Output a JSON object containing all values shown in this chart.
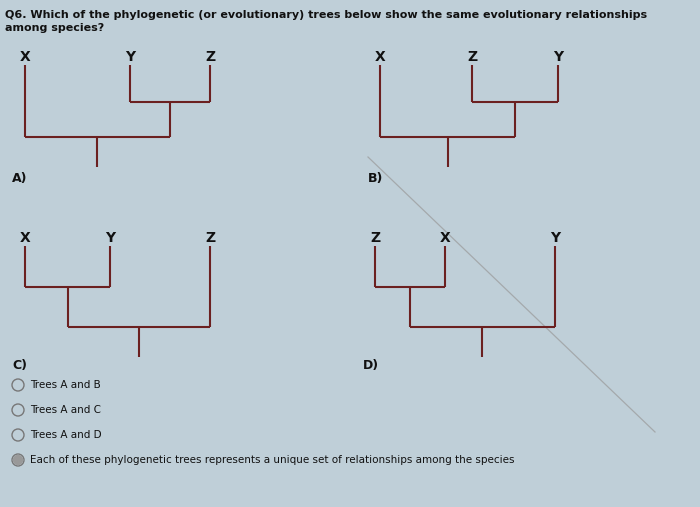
{
  "title_line1": "Q6. Which of the phylogenetic (or evolutionary) trees below show the same evolutionary relationships",
  "title_line2": "among species?",
  "bg_color": "#bfcfd8",
  "tree_color": "#6b2020",
  "text_color": "#111111",
  "label_color": "#111111",
  "options": [
    "Trees A and B",
    "Trees A and C",
    "Trees A and D",
    "Each of these phylogenetic trees represents a unique set of relationships among the species"
  ],
  "figsize": [
    7.0,
    5.07
  ],
  "dpi": 100
}
